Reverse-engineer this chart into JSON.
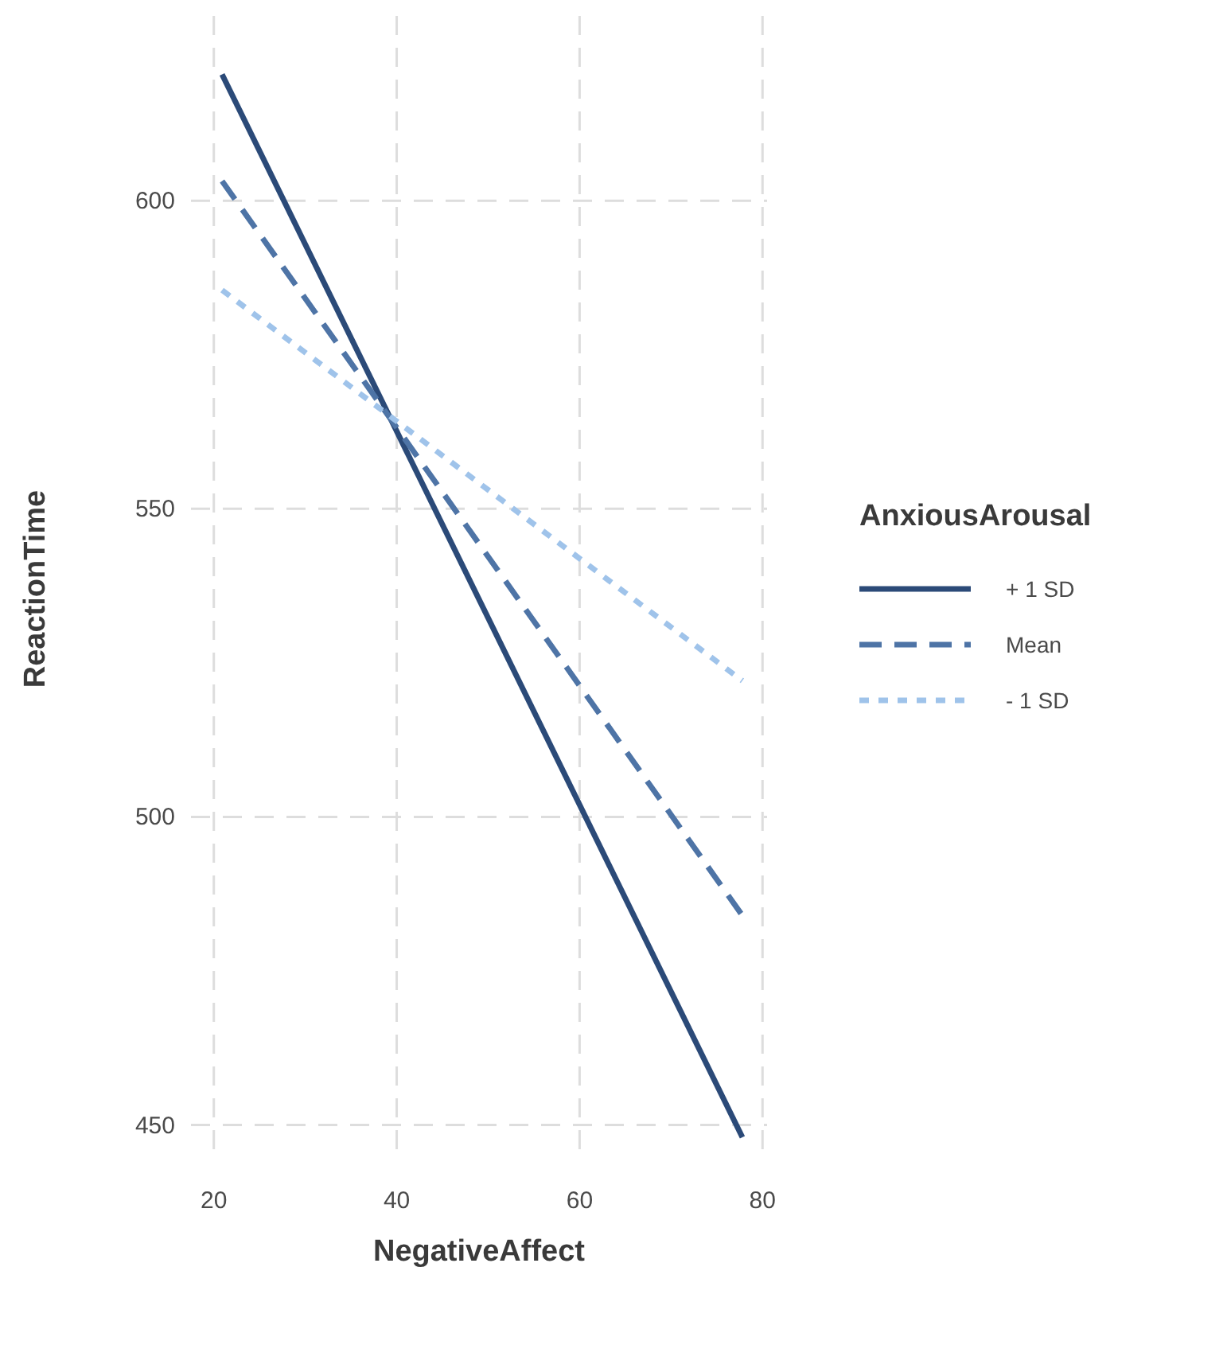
{
  "chart_data": {
    "type": "line",
    "xlabel": "NegativeAffect",
    "ylabel": "ReactionTime",
    "legend_title": "AnxiousArousal",
    "xlim": [
      17.5,
      80.5
    ],
    "ylim": [
      444,
      630
    ],
    "xticks": [
      20,
      40,
      60,
      80
    ],
    "yticks": [
      450,
      500,
      550,
      600
    ],
    "grid": true,
    "legend": "right",
    "x": [
      20.9,
      77.8
    ],
    "series": [
      {
        "name": "+ 1 SD",
        "color": "#2b4a78",
        "line_style": "solid",
        "values": [
          620.5,
          448
        ]
      },
      {
        "name": "Mean",
        "color": "#4e74a6",
        "line_style": "dashed",
        "values": [
          603.2,
          484
        ]
      },
      {
        "name": "- 1 SD",
        "color": "#9fc3ea",
        "line_style": "dotted",
        "values": [
          585.5,
          522.1
        ]
      }
    ]
  }
}
